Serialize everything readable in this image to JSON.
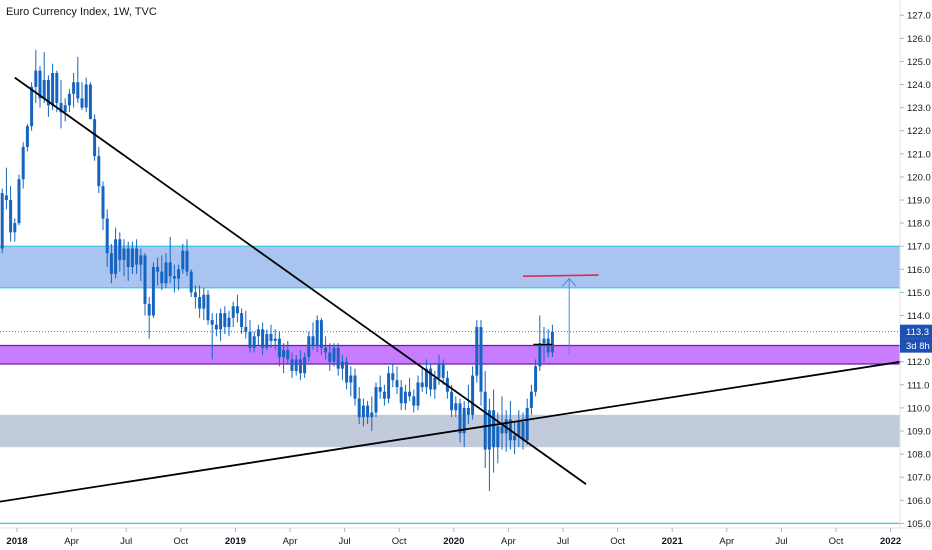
{
  "header": {
    "title": "Euro Currency Index, 1W, TVC"
  },
  "colors": {
    "candle": "#1565c0",
    "upper_zone": "#a9c4f0",
    "upper_zone_border": "#33c9e0",
    "mid_zone": "#c77dff",
    "mid_zone_border": "#6a1fa0",
    "lower_zone": "#c2cbdc",
    "trendline": "#000000",
    "target_line": "#e0274a",
    "arrow": "#4a8fd6",
    "price_badge": "#1e50b4"
  },
  "price_axis": {
    "ticks": [
      "127.0",
      "126.0",
      "125.0",
      "124.0",
      "123.0",
      "122.0",
      "121.0",
      "120.0",
      "119.0",
      "118.0",
      "117.0",
      "116.0",
      "115.0",
      "114.0",
      "113.0",
      "112.0",
      "111.0",
      "110.0",
      "109.0",
      "108.0",
      "107.0",
      "106.0",
      "105.0"
    ],
    "current_price_label": "113.3",
    "countdown_label": "3d 8h"
  },
  "time_axis": {
    "ticks": [
      {
        "label": "2018",
        "t": 0,
        "bold": true
      },
      {
        "label": "Apr",
        "t": 13
      },
      {
        "label": "Jul",
        "t": 26
      },
      {
        "label": "Oct",
        "t": 39
      },
      {
        "label": "2019",
        "t": 52,
        "bold": true
      },
      {
        "label": "Apr",
        "t": 65
      },
      {
        "label": "Jul",
        "t": 78
      },
      {
        "label": "Oct",
        "t": 91
      },
      {
        "label": "2020",
        "t": 104,
        "bold": true
      },
      {
        "label": "Apr",
        "t": 117
      },
      {
        "label": "Jul",
        "t": 130
      },
      {
        "label": "Oct",
        "t": 143
      },
      {
        "label": "2021",
        "t": 156,
        "bold": true
      },
      {
        "label": "Apr",
        "t": 169
      },
      {
        "label": "Jul",
        "t": 182
      },
      {
        "label": "Oct",
        "t": 195
      },
      {
        "label": "2022",
        "t": 208,
        "bold": true
      }
    ]
  },
  "chart_data": {
    "type": "candlestick",
    "x_unit": "weeks since 2018-01-01",
    "y_unit": "index points",
    "ylim": [
      104.8,
      127.4
    ],
    "xlim": [
      -4,
      208
    ],
    "zones": [
      {
        "name": "upper-zone",
        "from": 115.2,
        "to": 117.0
      },
      {
        "name": "mid-zone",
        "from": 111.9,
        "to": 112.7
      },
      {
        "name": "lower-zone",
        "from": 108.3,
        "to": 109.7
      },
      {
        "name": "bottom-line",
        "from": 105.0,
        "to": 105.0
      }
    ],
    "trendlines": [
      {
        "name": "descending-trendline",
        "t1": -1,
        "p1": 124.3,
        "t2": 135,
        "p2": 106.7
      },
      {
        "name": "ascending-trendline",
        "t1": -6,
        "p1": 105.9,
        "t2": 210,
        "p2": 112.0
      }
    ],
    "target_line": {
      "t1": 120,
      "t2": 138,
      "p1": 115.7,
      "p2": 115.75
    },
    "projection_arrow": {
      "t": 131,
      "from": 112.3,
      "to": 115.6
    },
    "candles": [
      [
        -4,
        116.9,
        119.5,
        116.7,
        119.3
      ],
      [
        -3,
        119.2,
        120.4,
        118.6,
        119.0
      ],
      [
        -2,
        119.0,
        119.6,
        117.2,
        117.6
      ],
      [
        -1,
        117.6,
        118.2,
        117.2,
        118.0
      ],
      [
        0,
        118.0,
        120.1,
        117.9,
        119.9
      ],
      [
        1,
        119.9,
        121.5,
        119.5,
        121.3
      ],
      [
        2,
        121.3,
        122.3,
        121.1,
        122.2
      ],
      [
        3,
        122.2,
        124.1,
        122.0,
        123.9
      ],
      [
        4,
        123.9,
        125.5,
        123.2,
        124.6
      ],
      [
        5,
        124.6,
        124.8,
        123.0,
        123.4
      ],
      [
        6,
        123.4,
        125.4,
        123.2,
        124.2
      ],
      [
        7,
        124.2,
        124.4,
        122.6,
        123.1
      ],
      [
        8,
        123.1,
        124.9,
        122.9,
        124.5
      ],
      [
        9,
        124.5,
        124.6,
        122.8,
        123.2
      ],
      [
        10,
        123.2,
        124.2,
        122.1,
        122.8
      ],
      [
        11,
        122.8,
        123.4,
        122.4,
        123.1
      ],
      [
        12,
        123.1,
        123.8,
        122.8,
        123.6
      ],
      [
        13,
        123.6,
        124.5,
        123.0,
        124.1
      ],
      [
        14,
        124.1,
        125.2,
        123.2,
        123.4
      ],
      [
        15,
        123.4,
        124.1,
        122.9,
        123.0
      ],
      [
        16,
        123.0,
        124.3,
        122.8,
        124.0
      ],
      [
        17,
        124.0,
        124.1,
        122.5,
        122.5
      ],
      [
        18,
        122.5,
        122.7,
        120.7,
        120.9
      ],
      [
        19,
        120.9,
        121.3,
        119.3,
        119.6
      ],
      [
        20,
        119.6,
        119.8,
        117.7,
        118.2
      ],
      [
        21,
        118.2,
        118.6,
        116.1,
        116.7
      ],
      [
        22,
        116.7,
        117.1,
        115.4,
        115.8
      ],
      [
        23,
        115.8,
        117.8,
        115.6,
        117.3
      ],
      [
        24,
        117.3,
        117.6,
        115.9,
        116.4
      ],
      [
        25,
        116.4,
        117.3,
        115.7,
        116.9
      ],
      [
        26,
        116.9,
        117.2,
        115.5,
        116.1
      ],
      [
        27,
        116.1,
        117.2,
        115.8,
        116.9
      ],
      [
        28,
        116.9,
        117.3,
        115.8,
        116.2
      ],
      [
        29,
        116.2,
        116.9,
        115.5,
        116.6
      ],
      [
        30,
        116.6,
        116.7,
        114.0,
        114.5
      ],
      [
        31,
        114.5,
        114.8,
        113.0,
        114.0
      ],
      [
        32,
        114.0,
        116.3,
        113.9,
        116.1
      ],
      [
        33,
        116.1,
        116.5,
        115.3,
        115.9
      ],
      [
        34,
        115.9,
        116.6,
        115.1,
        115.4
      ],
      [
        35,
        115.4,
        116.7,
        115.2,
        116.3
      ],
      [
        36,
        116.3,
        117.4,
        115.4,
        115.7
      ],
      [
        37,
        115.7,
        116.2,
        115.0,
        115.6
      ],
      [
        38,
        115.6,
        116.2,
        115.1,
        116.0
      ],
      [
        39,
        116.0,
        117.1,
        115.8,
        116.8
      ],
      [
        40,
        116.8,
        117.3,
        115.7,
        115.9
      ],
      [
        41,
        115.9,
        116.0,
        114.8,
        115.0
      ],
      [
        42,
        115.0,
        115.3,
        114.3,
        114.8
      ],
      [
        43,
        114.8,
        115.3,
        113.9,
        114.3
      ],
      [
        44,
        114.3,
        115.2,
        113.8,
        114.9
      ],
      [
        45,
        114.9,
        115.1,
        113.6,
        113.8
      ],
      [
        46,
        113.8,
        114.1,
        112.1,
        113.6
      ],
      [
        47,
        113.6,
        114.1,
        113.1,
        113.4
      ],
      [
        48,
        113.4,
        114.3,
        112.9,
        114.1
      ],
      [
        49,
        114.1,
        114.4,
        113.2,
        113.5
      ],
      [
        50,
        113.5,
        114.2,
        113.1,
        113.9
      ],
      [
        51,
        113.9,
        114.6,
        113.5,
        114.4
      ],
      [
        52,
        114.4,
        114.9,
        113.7,
        114.1
      ],
      [
        53,
        114.1,
        114.3,
        113.2,
        113.5
      ],
      [
        54,
        113.5,
        114.2,
        113.0,
        113.3
      ],
      [
        55,
        113.3,
        113.8,
        112.4,
        112.6
      ],
      [
        56,
        112.6,
        113.3,
        112.4,
        113.1
      ],
      [
        57,
        113.1,
        113.6,
        112.7,
        113.4
      ],
      [
        58,
        113.4,
        113.7,
        112.3,
        112.6
      ],
      [
        59,
        112.6,
        113.4,
        112.5,
        113.2
      ],
      [
        60,
        113.2,
        113.6,
        112.6,
        112.9
      ],
      [
        61,
        112.9,
        113.4,
        112.5,
        113.0
      ],
      [
        62,
        113.0,
        113.3,
        111.8,
        112.2
      ],
      [
        63,
        112.2,
        112.8,
        111.5,
        112.5
      ],
      [
        64,
        112.5,
        112.9,
        111.9,
        112.1
      ],
      [
        65,
        112.1,
        112.4,
        111.3,
        111.6
      ],
      [
        66,
        111.6,
        112.3,
        111.4,
        112.1
      ],
      [
        67,
        112.1,
        112.5,
        111.2,
        111.5
      ],
      [
        68,
        111.5,
        112.4,
        111.3,
        112.2
      ],
      [
        69,
        112.2,
        113.3,
        112.0,
        113.1
      ],
      [
        70,
        113.1,
        113.7,
        112.5,
        112.7
      ],
      [
        71,
        112.7,
        114.0,
        112.4,
        113.8
      ],
      [
        72,
        113.8,
        113.9,
        112.3,
        112.6
      ],
      [
        73,
        112.6,
        113.1,
        112.1,
        112.4
      ],
      [
        74,
        112.4,
        112.8,
        111.6,
        112.0
      ],
      [
        75,
        112.0,
        112.8,
        111.8,
        112.6
      ],
      [
        76,
        112.6,
        112.8,
        111.4,
        111.7
      ],
      [
        77,
        111.7,
        112.3,
        111.2,
        112.0
      ],
      [
        78,
        112.0,
        112.2,
        110.8,
        111.1
      ],
      [
        79,
        111.1,
        111.8,
        110.5,
        111.4
      ],
      [
        80,
        111.4,
        111.7,
        110.1,
        110.4
      ],
      [
        81,
        110.4,
        110.9,
        109.3,
        109.6
      ],
      [
        82,
        109.6,
        110.4,
        109.2,
        110.1
      ],
      [
        83,
        110.1,
        110.3,
        109.3,
        109.6
      ],
      [
        84,
        109.6,
        110.5,
        109.0,
        109.8
      ],
      [
        85,
        109.8,
        111.1,
        109.6,
        110.9
      ],
      [
        86,
        110.9,
        111.4,
        110.4,
        110.7
      ],
      [
        87,
        110.7,
        111.0,
        110.1,
        110.4
      ],
      [
        88,
        110.4,
        111.8,
        110.2,
        111.5
      ],
      [
        89,
        111.5,
        111.9,
        110.9,
        111.2
      ],
      [
        90,
        111.2,
        111.8,
        110.6,
        110.9
      ],
      [
        91,
        110.9,
        111.2,
        109.9,
        110.2
      ],
      [
        92,
        110.2,
        111.0,
        109.9,
        110.7
      ],
      [
        93,
        110.7,
        111.3,
        110.3,
        110.5
      ],
      [
        94,
        110.5,
        110.8,
        109.8,
        110.1
      ],
      [
        95,
        110.1,
        111.4,
        109.9,
        111.1
      ],
      [
        96,
        111.1,
        111.8,
        110.7,
        110.9
      ],
      [
        97,
        110.9,
        112.1,
        110.6,
        111.7
      ],
      [
        98,
        111.7,
        111.9,
        110.5,
        110.8
      ],
      [
        99,
        110.8,
        111.6,
        110.4,
        111.3
      ],
      [
        100,
        111.3,
        112.3,
        111.0,
        111.9
      ],
      [
        101,
        111.9,
        112.1,
        111.0,
        111.3
      ],
      [
        102,
        111.3,
        111.6,
        110.4,
        110.7
      ],
      [
        103,
        110.7,
        111.0,
        109.6,
        109.9
      ],
      [
        104,
        109.9,
        110.5,
        109.6,
        110.2
      ],
      [
        105,
        110.2,
        110.4,
        108.5,
        108.9
      ],
      [
        106,
        108.9,
        110.3,
        108.3,
        110.0
      ],
      [
        107,
        110.0,
        111.0,
        109.3,
        109.7
      ],
      [
        108,
        109.7,
        111.8,
        109.5,
        111.4
      ],
      [
        109,
        111.4,
        113.8,
        111.1,
        113.5
      ],
      [
        110,
        113.5,
        113.8,
        110.1,
        110.7
      ],
      [
        111,
        110.7,
        111.6,
        107.4,
        108.2
      ],
      [
        112,
        108.2,
        110.4,
        106.4,
        109.9
      ],
      [
        113,
        109.9,
        110.8,
        107.2,
        108.3
      ],
      [
        114,
        108.3,
        109.8,
        107.6,
        109.2
      ],
      [
        115,
        109.2,
        110.5,
        108.2,
        108.9
      ],
      [
        116,
        108.9,
        109.9,
        108.1,
        109.5
      ],
      [
        117,
        109.5,
        110.3,
        108.2,
        108.6
      ],
      [
        118,
        108.6,
        109.4,
        108.0,
        108.8
      ],
      [
        119,
        108.8,
        109.9,
        108.3,
        109.4
      ],
      [
        120,
        109.4,
        109.8,
        108.2,
        108.6
      ],
      [
        121,
        108.6,
        110.4,
        108.4,
        110.0
      ],
      [
        122,
        110.0,
        111.0,
        109.7,
        110.7
      ],
      [
        123,
        110.7,
        112.1,
        110.5,
        111.8
      ],
      [
        124,
        111.8,
        114.0,
        111.6,
        112.8
      ],
      [
        125,
        112.8,
        113.5,
        112.0,
        113.0
      ],
      [
        126,
        113.0,
        113.4,
        112.2,
        112.4
      ],
      [
        127,
        112.4,
        113.6,
        112.2,
        113.3
      ]
    ]
  }
}
